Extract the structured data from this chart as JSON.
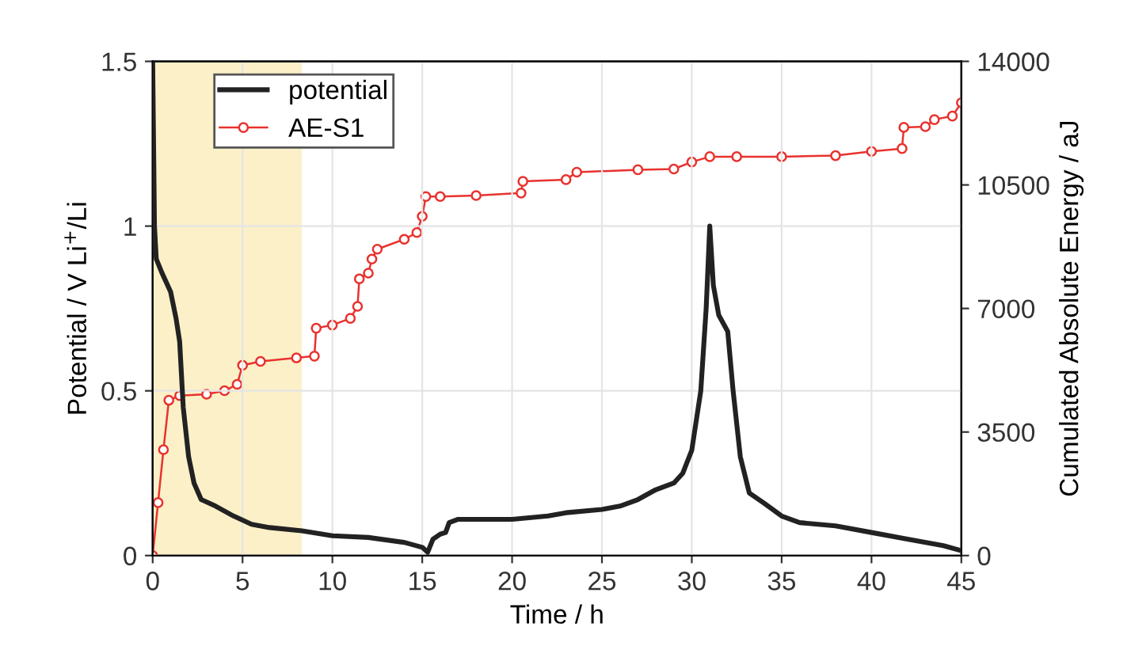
{
  "chart_data": {
    "type": "line",
    "xlabel": "Time / h",
    "ylabel": "Potential / V Li$^{+}$/Li",
    "y2label": "Cumulated Absolute Energy / aJ",
    "xlim": [
      0,
      45
    ],
    "xticks": [
      0,
      5,
      10,
      15,
      20,
      25,
      30,
      35,
      40,
      45
    ],
    "ylim": [
      0,
      1.5
    ],
    "yticks": [
      0,
      0.5,
      1,
      1.5
    ],
    "y2lim": [
      0,
      14000
    ],
    "y2ticks": [
      0,
      3500,
      7000,
      10500,
      14000
    ],
    "grid": true,
    "legend": "top left",
    "bands": [
      {
        "axis": "x",
        "from": 0,
        "to": 8.3,
        "color": "#fcf0c8"
      }
    ],
    "series": [
      {
        "name": "potential",
        "color": "#222222",
        "marker": "none",
        "x": [
          0,
          0.05,
          0.1,
          0.2,
          0.5,
          1.0,
          1.3,
          1.5,
          1.7,
          2.0,
          2.3,
          2.7,
          3.5,
          4.5,
          5.5,
          6.5,
          8.3,
          10,
          12,
          14,
          15,
          15.3,
          15.6,
          16,
          16.3,
          16.5,
          17,
          20,
          22,
          23,
          25,
          26,
          27,
          28,
          29,
          29.5,
          30,
          30.5,
          30.8,
          31,
          31.2,
          31.5,
          32,
          32.3,
          32.7,
          33.2,
          34,
          35,
          36,
          38,
          40,
          42,
          44,
          45
        ],
        "values": [
          1.5,
          1.25,
          1.0,
          0.9,
          0.86,
          0.8,
          0.72,
          0.65,
          0.45,
          0.3,
          0.22,
          0.17,
          0.15,
          0.12,
          0.095,
          0.085,
          0.075,
          0.06,
          0.055,
          0.04,
          0.025,
          0.01,
          0.05,
          0.065,
          0.07,
          0.1,
          0.11,
          0.11,
          0.12,
          0.13,
          0.14,
          0.15,
          0.17,
          0.2,
          0.22,
          0.25,
          0.32,
          0.5,
          0.75,
          1.0,
          0.82,
          0.73,
          0.68,
          0.5,
          0.3,
          0.19,
          0.16,
          0.12,
          0.1,
          0.09,
          0.07,
          0.05,
          0.03,
          0.015
        ]
      },
      {
        "name": "AE-S1",
        "color": "#e8322e",
        "marker": "circle",
        "axis": "y2",
        "x": [
          0,
          0.3,
          0.6,
          0.9,
          1.5,
          3,
          4,
          4.7,
          5,
          6,
          8,
          9,
          9.1,
          10,
          11,
          11.4,
          11.5,
          12,
          12.2,
          12.5,
          14,
          14.7,
          15,
          15.2,
          16,
          18,
          20.5,
          20.6,
          23,
          23.6,
          27,
          29,
          30,
          31,
          32.5,
          35,
          38,
          40,
          41.7,
          41.8,
          43,
          43.5,
          44.5,
          45
        ],
        "values": [
          0,
          1500,
          3000,
          4400,
          4530,
          4570,
          4670,
          4850,
          5390,
          5500,
          5600,
          5650,
          6440,
          6530,
          6720,
          7060,
          7840,
          8000,
          8400,
          8680,
          8960,
          9150,
          9610,
          10170,
          10170,
          10200,
          10270,
          10600,
          10650,
          10860,
          10930,
          10950,
          11150,
          11300,
          11300,
          11300,
          11330,
          11450,
          11530,
          12130,
          12150,
          12350,
          12450,
          12830
        ]
      }
    ]
  }
}
